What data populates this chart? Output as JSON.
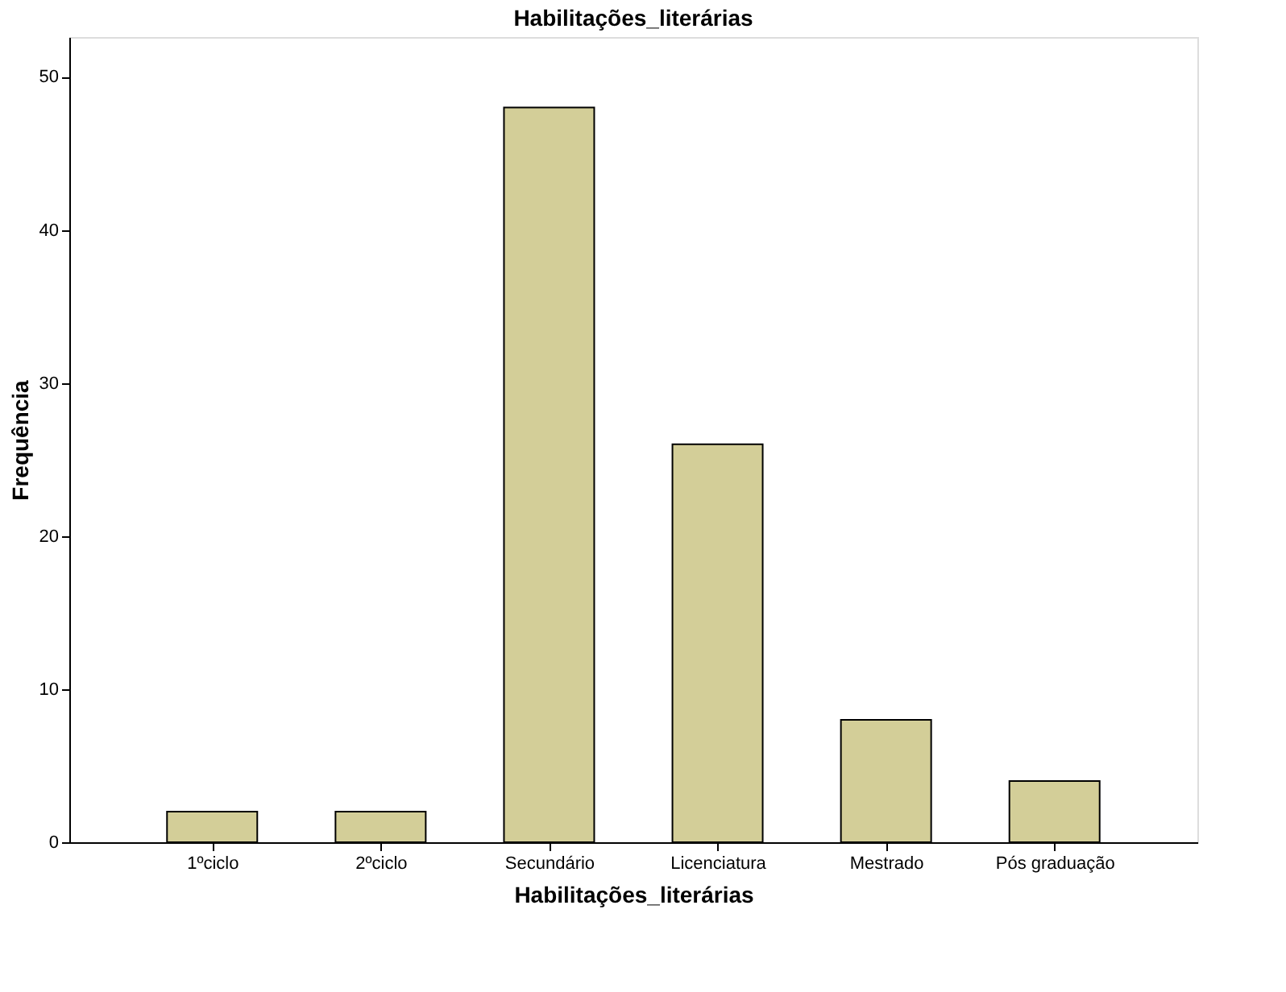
{
  "chart_data": {
    "type": "bar",
    "title": "Habilitações_literárias",
    "xlabel": "Habilitações_literárias",
    "ylabel": "Frequência",
    "categories": [
      "1ºciclo",
      "2ºciclo",
      "Secundário",
      "Licenciatura",
      "Mestrado",
      "Pós graduação"
    ],
    "values": [
      2,
      2,
      48,
      26,
      8,
      4
    ],
    "color": "#d3ce98",
    "ylim": [
      0,
      52.6
    ],
    "yticks": [
      0,
      10,
      20,
      30,
      40,
      50
    ],
    "grid": false
  }
}
